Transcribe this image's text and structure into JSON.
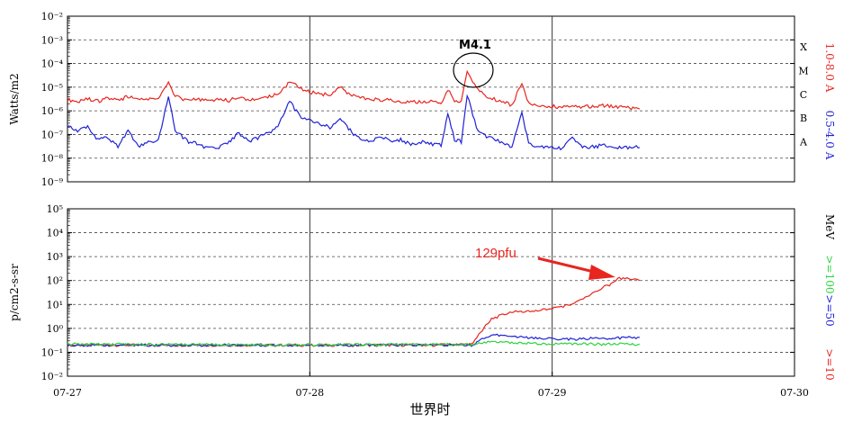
{
  "chart_data": [
    {
      "type": "line",
      "ylabel": "Watts/m2",
      "yscale": "log",
      "ylim": [
        1e-09,
        0.01
      ],
      "y_tick_labels": [
        "10⁻⁹",
        "10⁻⁸",
        "10⁻⁷",
        "10⁻⁶",
        "10⁻⁵",
        "10⁻⁴",
        "10⁻³",
        "10⁻²"
      ],
      "x_range": [
        "07-27 00:00",
        "07-30 00:00"
      ],
      "grid": "dashed horizontal at each decade, solid vertical at day boundaries",
      "flare_classes": [
        "X",
        "M",
        "C",
        "B",
        "A"
      ],
      "flare_class_colors": {
        "X": "#000000",
        "M": "#000000",
        "C": "#000000",
        "B": "#000000",
        "A": "#000000"
      },
      "annotation": {
        "label": "M4.1",
        "x": "07-28 15:35",
        "y": 4.1e-05
      },
      "series": [
        {
          "name": "1.0-8.0 A",
          "color": "#e8251f",
          "points": [
            [
              "07-27 00:00",
              3e-06
            ],
            [
              "07-27 01:00",
              2.5e-06
            ],
            [
              "07-27 02:00",
              3.2e-06
            ],
            [
              "07-27 03:00",
              2.6e-06
            ],
            [
              "07-27 04:00",
              3.5e-06
            ],
            [
              "07-27 05:00",
              2.8e-06
            ],
            [
              "07-27 06:00",
              4e-06
            ],
            [
              "07-27 07:00",
              3e-06
            ],
            [
              "07-27 08:00",
              3.3e-06
            ],
            [
              "07-27 09:00",
              3.1e-06
            ],
            [
              "07-27 10:00",
              1.6e-05
            ],
            [
              "07-27 10:40",
              4e-06
            ],
            [
              "07-27 12:00",
              2.8e-06
            ],
            [
              "07-27 13:00",
              3.2e-06
            ],
            [
              "07-27 14:00",
              2.5e-06
            ],
            [
              "07-27 15:00",
              3e-06
            ],
            [
              "07-27 16:00",
              2.8e-06
            ],
            [
              "07-27 17:00",
              3.6e-06
            ],
            [
              "07-27 18:00",
              3e-06
            ],
            [
              "07-27 19:00",
              3.2e-06
            ],
            [
              "07-27 20:00",
              4e-06
            ],
            [
              "07-27 21:00",
              6e-06
            ],
            [
              "07-27 22:00",
              1.6e-05
            ],
            [
              "07-27 23:00",
              1e-05
            ],
            [
              "07-28 00:00",
              6e-06
            ],
            [
              "07-28 01:00",
              5.5e-06
            ],
            [
              "07-28 02:00",
              4.5e-06
            ],
            [
              "07-28 03:00",
              1e-05
            ],
            [
              "07-28 04:00",
              5e-06
            ],
            [
              "07-28 05:00",
              3.5e-06
            ],
            [
              "07-28 06:00",
              3e-06
            ],
            [
              "07-28 07:00",
              3e-06
            ],
            [
              "07-28 08:00",
              2.8e-06
            ],
            [
              "07-28 09:00",
              2.6e-06
            ],
            [
              "07-28 10:00",
              2.4e-06
            ],
            [
              "07-28 11:00",
              2.3e-06
            ],
            [
              "07-28 12:00",
              2.5e-06
            ],
            [
              "07-28 13:00",
              2.2e-06
            ],
            [
              "07-28 13:40",
              8e-06
            ],
            [
              "07-28 14:20",
              2.5e-06
            ],
            [
              "07-28 15:00",
              2.4e-06
            ],
            [
              "07-28 15:35",
              4.1e-05
            ],
            [
              "07-28 16:30",
              1e-05
            ],
            [
              "07-28 17:30",
              4e-06
            ],
            [
              "07-28 19:00",
              2.5e-06
            ],
            [
              "07-28 20:00",
              1.8e-06
            ],
            [
              "07-28 21:00",
              1.4e-05
            ],
            [
              "07-28 21:40",
              2e-06
            ],
            [
              "07-28 23:00",
              1.7e-06
            ],
            [
              "07-29 00:00",
              1.6e-06
            ],
            [
              "07-29 01:00",
              1.4e-06
            ],
            [
              "07-29 02:00",
              1.5e-06
            ],
            [
              "07-29 03:00",
              1.5e-06
            ],
            [
              "07-29 04:00",
              1.6e-06
            ],
            [
              "07-29 05:00",
              1.7e-06
            ],
            [
              "07-29 06:00",
              1.5e-06
            ],
            [
              "07-29 07:00",
              1.4e-06
            ],
            [
              "07-29 08:00",
              1.3e-06
            ],
            [
              "07-29 08:40",
              1.2e-06
            ]
          ]
        },
        {
          "name": "0.5-4.0 A",
          "color": "#1f22d6",
          "points": [
            [
              "07-27 00:00",
              2.5e-07
            ],
            [
              "07-27 01:00",
              1.5e-07
            ],
            [
              "07-27 02:00",
              2.2e-07
            ],
            [
              "07-27 03:00",
              6e-08
            ],
            [
              "07-27 04:00",
              8e-08
            ],
            [
              "07-27 05:00",
              3e-08
            ],
            [
              "07-27 06:00",
              1.5e-07
            ],
            [
              "07-27 07:00",
              3e-08
            ],
            [
              "07-27 08:00",
              5e-08
            ],
            [
              "07-27 09:00",
              6e-08
            ],
            [
              "07-27 10:00",
              4e-06
            ],
            [
              "07-27 10:40",
              1.5e-07
            ],
            [
              "07-27 12:00",
              5e-08
            ],
            [
              "07-27 13:00",
              4e-08
            ],
            [
              "07-27 14:00",
              2.5e-08
            ],
            [
              "07-27 15:00",
              3e-08
            ],
            [
              "07-27 16:00",
              5e-08
            ],
            [
              "07-27 17:00",
              1.2e-07
            ],
            [
              "07-27 18:00",
              5e-08
            ],
            [
              "07-27 19:00",
              8e-08
            ],
            [
              "07-27 20:00",
              1.2e-07
            ],
            [
              "07-27 21:00",
              3e-07
            ],
            [
              "07-27 22:00",
              2.5e-06
            ],
            [
              "07-27 23:00",
              6e-07
            ],
            [
              "07-28 00:00",
              4e-07
            ],
            [
              "07-28 01:00",
              3e-07
            ],
            [
              "07-28 02:00",
              2e-07
            ],
            [
              "07-28 03:00",
              5e-07
            ],
            [
              "07-28 04:00",
              1.5e-07
            ],
            [
              "07-28 05:00",
              6e-08
            ],
            [
              "07-28 06:00",
              5e-08
            ],
            [
              "07-28 07:00",
              9e-08
            ],
            [
              "07-28 08:00",
              5e-08
            ],
            [
              "07-28 09:00",
              6e-08
            ],
            [
              "07-28 10:00",
              4e-08
            ],
            [
              "07-28 11:00",
              5e-08
            ],
            [
              "07-28 12:00",
              4e-08
            ],
            [
              "07-28 13:00",
              3.5e-08
            ],
            [
              "07-28 13:40",
              8e-07
            ],
            [
              "07-28 14:20",
              6e-08
            ],
            [
              "07-28 15:00",
              5e-08
            ],
            [
              "07-28 15:35",
              5e-06
            ],
            [
              "07-28 16:30",
              2e-07
            ],
            [
              "07-28 17:30",
              8e-08
            ],
            [
              "07-28 19:00",
              5e-08
            ],
            [
              "07-28 20:00",
              3e-08
            ],
            [
              "07-28 21:00",
              1e-06
            ],
            [
              "07-28 21:40",
              4e-08
            ],
            [
              "07-28 23:00",
              3e-08
            ],
            [
              "07-29 00:00",
              2.8e-08
            ],
            [
              "07-29 01:00",
              2.5e-08
            ],
            [
              "07-29 02:00",
              8e-08
            ],
            [
              "07-29 03:00",
              3e-08
            ],
            [
              "07-29 04:00",
              3e-08
            ],
            [
              "07-29 05:00",
              3.5e-08
            ],
            [
              "07-29 06:00",
              3e-08
            ],
            [
              "07-29 07:00",
              2.8e-08
            ],
            [
              "07-29 08:00",
              3e-08
            ],
            [
              "07-29 08:40",
              2.8e-08
            ]
          ]
        }
      ]
    },
    {
      "type": "line",
      "ylabel": "p/cm2-s-sr",
      "yscale": "log",
      "ylim": [
        0.01,
        100000
      ],
      "y_tick_labels": [
        "10⁻²",
        "10⁻¹",
        "10⁰",
        "10¹",
        "10²",
        "10³",
        "10⁴",
        "10⁵"
      ],
      "x_range": [
        "07-27 00:00",
        "07-30 00:00"
      ],
      "x_tick_labels": [
        "07-27",
        "07-28",
        "07-29",
        "07-30"
      ],
      "xlabel": "世界时",
      "units_label": "MeV",
      "annotation": {
        "label": "129pfu",
        "x": "07-29 06:40",
        "y": 129
      },
      "series": [
        {
          "name": ">=10",
          "color": "#e8251f",
          "points": [
            [
              "07-27 00:00",
              0.2
            ],
            [
              "07-27 12:00",
              0.2
            ],
            [
              "07-28 00:00",
              0.2
            ],
            [
              "07-28 12:00",
              0.2
            ],
            [
              "07-28 16:00",
              0.22
            ],
            [
              "07-28 18:00",
              2.5
            ],
            [
              "07-28 20:00",
              5
            ],
            [
              "07-28 22:00",
              5
            ],
            [
              "07-29 00:00",
              7
            ],
            [
              "07-29 02:00",
              10
            ],
            [
              "07-29 04:00",
              30
            ],
            [
              "07-29 05:00",
              50
            ],
            [
              "07-29 06:00",
              80
            ],
            [
              "07-29 06:40",
              129
            ],
            [
              "07-29 08:40",
              100
            ]
          ]
        },
        {
          "name": ">=50",
          "color": "#1f22d6",
          "points": [
            [
              "07-27 00:00",
              0.2
            ],
            [
              "07-27 12:00",
              0.2
            ],
            [
              "07-28 00:00",
              0.2
            ],
            [
              "07-28 12:00",
              0.2
            ],
            [
              "07-28 16:00",
              0.2
            ],
            [
              "07-28 18:00",
              0.55
            ],
            [
              "07-28 20:00",
              0.45
            ],
            [
              "07-28 22:00",
              0.4
            ],
            [
              "07-29 00:00",
              0.38
            ],
            [
              "07-29 02:00",
              0.35
            ],
            [
              "07-29 04:00",
              0.38
            ],
            [
              "07-29 06:00",
              0.4
            ],
            [
              "07-29 08:40",
              0.42
            ]
          ]
        },
        {
          "name": ">=100",
          "color": "#2bd43c",
          "points": [
            [
              "07-27 00:00",
              0.22
            ],
            [
              "07-27 12:00",
              0.21
            ],
            [
              "07-28 00:00",
              0.21
            ],
            [
              "07-28 12:00",
              0.21
            ],
            [
              "07-28 16:00",
              0.21
            ],
            [
              "07-28 18:00",
              0.3
            ],
            [
              "07-28 20:00",
              0.26
            ],
            [
              "07-28 22:00",
              0.24
            ],
            [
              "07-29 00:00",
              0.23
            ],
            [
              "07-29 04:00",
              0.22
            ],
            [
              "07-29 08:40",
              0.22
            ]
          ]
        }
      ]
    }
  ]
}
